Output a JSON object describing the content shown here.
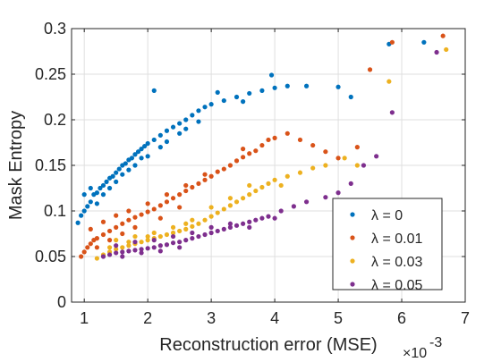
{
  "chart_data": {
    "type": "scatter",
    "xlabel": "Reconstruction error (MSE)",
    "ylabel": "Mask Entropy",
    "x_exponent_base": "×10",
    "x_exponent_power": "-3",
    "xlim": [
      0.8,
      7
    ],
    "ylim": [
      0,
      0.3
    ],
    "x_ticks": [
      1,
      2,
      3,
      4,
      5,
      6,
      7
    ],
    "y_ticks": [
      0,
      0.05,
      0.1,
      0.15,
      0.2,
      0.25,
      0.3
    ],
    "x_tick_labels": [
      "1",
      "2",
      "3",
      "4",
      "5",
      "6",
      "7"
    ],
    "y_tick_labels": [
      "0",
      "0.05",
      "0.1",
      "0.15",
      "0.2",
      "0.25",
      "0.3"
    ],
    "grid": true,
    "legend_position": "bottom-right",
    "series": [
      {
        "name": "λ = 0",
        "color": "#0072BD",
        "points": [
          [
            0.9,
            0.087
          ],
          [
            0.95,
            0.095
          ],
          [
            1.0,
            0.1
          ],
          [
            1.05,
            0.105
          ],
          [
            1.1,
            0.11
          ],
          [
            1.15,
            0.118
          ],
          [
            1.2,
            0.12
          ],
          [
            1.25,
            0.125
          ],
          [
            1.3,
            0.128
          ],
          [
            1.35,
            0.132
          ],
          [
            1.4,
            0.136
          ],
          [
            1.45,
            0.138
          ],
          [
            1.5,
            0.142
          ],
          [
            1.55,
            0.146
          ],
          [
            1.6,
            0.15
          ],
          [
            1.65,
            0.152
          ],
          [
            1.7,
            0.156
          ],
          [
            1.75,
            0.158
          ],
          [
            1.8,
            0.162
          ],
          [
            1.85,
            0.165
          ],
          [
            1.9,
            0.168
          ],
          [
            1.95,
            0.171
          ],
          [
            2.0,
            0.174
          ],
          [
            2.1,
            0.178
          ],
          [
            2.2,
            0.183
          ],
          [
            2.3,
            0.188
          ],
          [
            2.4,
            0.192
          ],
          [
            2.5,
            0.196
          ],
          [
            2.6,
            0.2
          ],
          [
            2.7,
            0.205
          ],
          [
            2.8,
            0.21
          ],
          [
            2.9,
            0.214
          ],
          [
            3.0,
            0.217
          ],
          [
            3.2,
            0.221
          ],
          [
            3.4,
            0.225
          ],
          [
            3.6,
            0.229
          ],
          [
            3.8,
            0.232
          ],
          [
            4.0,
            0.235
          ],
          [
            4.2,
            0.237
          ],
          [
            4.5,
            0.237
          ],
          [
            5.0,
            0.236
          ],
          [
            5.2,
            0.225
          ],
          [
            5.8,
            0.283
          ],
          [
            6.35,
            0.285
          ],
          [
            3.95,
            0.249
          ],
          [
            2.1,
            0.232
          ],
          [
            1.0,
            0.118
          ],
          [
            1.1,
            0.125
          ],
          [
            1.3,
            0.118
          ],
          [
            1.5,
            0.132
          ],
          [
            1.7,
            0.145
          ],
          [
            1.9,
            0.158
          ],
          [
            2.2,
            0.17
          ],
          [
            2.5,
            0.185
          ],
          [
            2.8,
            0.198
          ],
          [
            3.1,
            0.23
          ],
          [
            3.5,
            0.22
          ],
          [
            1.2,
            0.108
          ],
          [
            1.4,
            0.125
          ],
          [
            1.6,
            0.14
          ],
          [
            1.8,
            0.15
          ],
          [
            2.0,
            0.16
          ],
          [
            2.3,
            0.176
          ],
          [
            2.6,
            0.19
          ]
        ]
      },
      {
        "name": "λ = 0.01",
        "color": "#D95319",
        "points": [
          [
            0.95,
            0.05
          ],
          [
            1.0,
            0.055
          ],
          [
            1.05,
            0.06
          ],
          [
            1.1,
            0.064
          ],
          [
            1.15,
            0.068
          ],
          [
            1.2,
            0.07
          ],
          [
            1.3,
            0.074
          ],
          [
            1.4,
            0.078
          ],
          [
            1.5,
            0.082
          ],
          [
            1.6,
            0.086
          ],
          [
            1.7,
            0.09
          ],
          [
            1.8,
            0.093
          ],
          [
            1.9,
            0.096
          ],
          [
            2.0,
            0.099
          ],
          [
            2.1,
            0.102
          ],
          [
            2.2,
            0.106
          ],
          [
            2.3,
            0.11
          ],
          [
            2.4,
            0.114
          ],
          [
            2.5,
            0.118
          ],
          [
            2.6,
            0.122
          ],
          [
            2.7,
            0.126
          ],
          [
            2.8,
            0.13
          ],
          [
            2.9,
            0.134
          ],
          [
            3.0,
            0.138
          ],
          [
            3.1,
            0.143
          ],
          [
            3.2,
            0.146
          ],
          [
            3.3,
            0.15
          ],
          [
            3.4,
            0.155
          ],
          [
            3.5,
            0.159
          ],
          [
            3.6,
            0.163
          ],
          [
            3.7,
            0.166
          ],
          [
            3.8,
            0.172
          ],
          [
            3.9,
            0.178
          ],
          [
            4.0,
            0.18
          ],
          [
            4.2,
            0.185
          ],
          [
            4.4,
            0.178
          ],
          [
            4.6,
            0.172
          ],
          [
            4.8,
            0.165
          ],
          [
            5.0,
            0.158
          ],
          [
            5.5,
            0.255
          ],
          [
            5.85,
            0.285
          ],
          [
            6.65,
            0.292
          ],
          [
            1.1,
            0.08
          ],
          [
            1.3,
            0.088
          ],
          [
            1.5,
            0.095
          ],
          [
            1.7,
            0.1
          ],
          [
            2.0,
            0.108
          ],
          [
            2.3,
            0.118
          ],
          [
            2.6,
            0.128
          ],
          [
            2.9,
            0.14
          ],
          [
            1.2,
            0.06
          ],
          [
            1.4,
            0.068
          ],
          [
            1.6,
            0.075
          ],
          [
            1.8,
            0.082
          ],
          [
            2.2,
            0.092
          ],
          [
            2.5,
            0.104
          ],
          [
            3.5,
            0.168
          ],
          [
            5.3,
            0.17
          ]
        ]
      },
      {
        "name": "λ = 0.03",
        "color": "#EDB120",
        "points": [
          [
            1.2,
            0.048
          ],
          [
            1.3,
            0.052
          ],
          [
            1.4,
            0.055
          ],
          [
            1.5,
            0.058
          ],
          [
            1.6,
            0.06
          ],
          [
            1.7,
            0.062
          ],
          [
            1.8,
            0.064
          ],
          [
            1.9,
            0.066
          ],
          [
            2.0,
            0.068
          ],
          [
            2.1,
            0.07
          ],
          [
            2.2,
            0.072
          ],
          [
            2.3,
            0.074
          ],
          [
            2.4,
            0.076
          ],
          [
            2.5,
            0.078
          ],
          [
            2.6,
            0.08
          ],
          [
            2.7,
            0.083
          ],
          [
            2.8,
            0.086
          ],
          [
            2.9,
            0.09
          ],
          [
            3.0,
            0.094
          ],
          [
            3.1,
            0.098
          ],
          [
            3.2,
            0.102
          ],
          [
            3.3,
            0.106
          ],
          [
            3.4,
            0.11
          ],
          [
            3.5,
            0.114
          ],
          [
            3.6,
            0.118
          ],
          [
            3.7,
            0.122
          ],
          [
            3.8,
            0.126
          ],
          [
            3.9,
            0.13
          ],
          [
            4.0,
            0.134
          ],
          [
            4.2,
            0.138
          ],
          [
            4.4,
            0.142
          ],
          [
            4.6,
            0.147
          ],
          [
            4.8,
            0.15
          ],
          [
            5.1,
            0.158
          ],
          [
            5.3,
            0.15
          ],
          [
            5.8,
            0.242
          ],
          [
            6.7,
            0.277
          ],
          [
            1.5,
            0.068
          ],
          [
            1.8,
            0.072
          ],
          [
            2.1,
            0.076
          ],
          [
            2.4,
            0.082
          ],
          [
            2.7,
            0.09
          ],
          [
            3.0,
            0.104
          ],
          [
            3.3,
            0.114
          ],
          [
            1.4,
            0.06
          ],
          [
            1.7,
            0.066
          ],
          [
            2.0,
            0.072
          ],
          [
            2.6,
            0.086
          ],
          [
            3.6,
            0.128
          ],
          [
            4.1,
            0.128
          ]
        ]
      },
      {
        "name": "λ = 0.05",
        "color": "#7E2F8E",
        "points": [
          [
            1.3,
            0.05
          ],
          [
            1.4,
            0.052
          ],
          [
            1.5,
            0.054
          ],
          [
            1.6,
            0.055
          ],
          [
            1.7,
            0.056
          ],
          [
            1.8,
            0.057
          ],
          [
            1.9,
            0.058
          ],
          [
            2.0,
            0.059
          ],
          [
            2.1,
            0.06
          ],
          [
            2.2,
            0.062
          ],
          [
            2.3,
            0.063
          ],
          [
            2.4,
            0.065
          ],
          [
            2.5,
            0.066
          ],
          [
            2.6,
            0.068
          ],
          [
            2.7,
            0.07
          ],
          [
            2.8,
            0.072
          ],
          [
            2.9,
            0.074
          ],
          [
            3.0,
            0.076
          ],
          [
            3.1,
            0.078
          ],
          [
            3.2,
            0.08
          ],
          [
            3.3,
            0.082
          ],
          [
            3.4,
            0.084
          ],
          [
            3.5,
            0.086
          ],
          [
            3.6,
            0.088
          ],
          [
            3.7,
            0.09
          ],
          [
            3.8,
            0.092
          ],
          [
            3.9,
            0.094
          ],
          [
            4.1,
            0.1
          ],
          [
            4.3,
            0.105
          ],
          [
            4.5,
            0.11
          ],
          [
            4.8,
            0.115
          ],
          [
            5.0,
            0.12
          ],
          [
            5.2,
            0.13
          ],
          [
            5.4,
            0.15
          ],
          [
            5.6,
            0.16
          ],
          [
            5.85,
            0.208
          ],
          [
            6.55,
            0.274
          ],
          [
            1.5,
            0.062
          ],
          [
            1.8,
            0.066
          ],
          [
            2.1,
            0.068
          ],
          [
            2.4,
            0.072
          ],
          [
            2.7,
            0.076
          ],
          [
            3.0,
            0.082
          ],
          [
            3.3,
            0.086
          ],
          [
            1.6,
            0.05
          ],
          [
            1.9,
            0.054
          ],
          [
            2.2,
            0.056
          ],
          [
            2.5,
            0.06
          ],
          [
            3.6,
            0.082
          ],
          [
            4.0,
            0.092
          ]
        ]
      }
    ]
  }
}
